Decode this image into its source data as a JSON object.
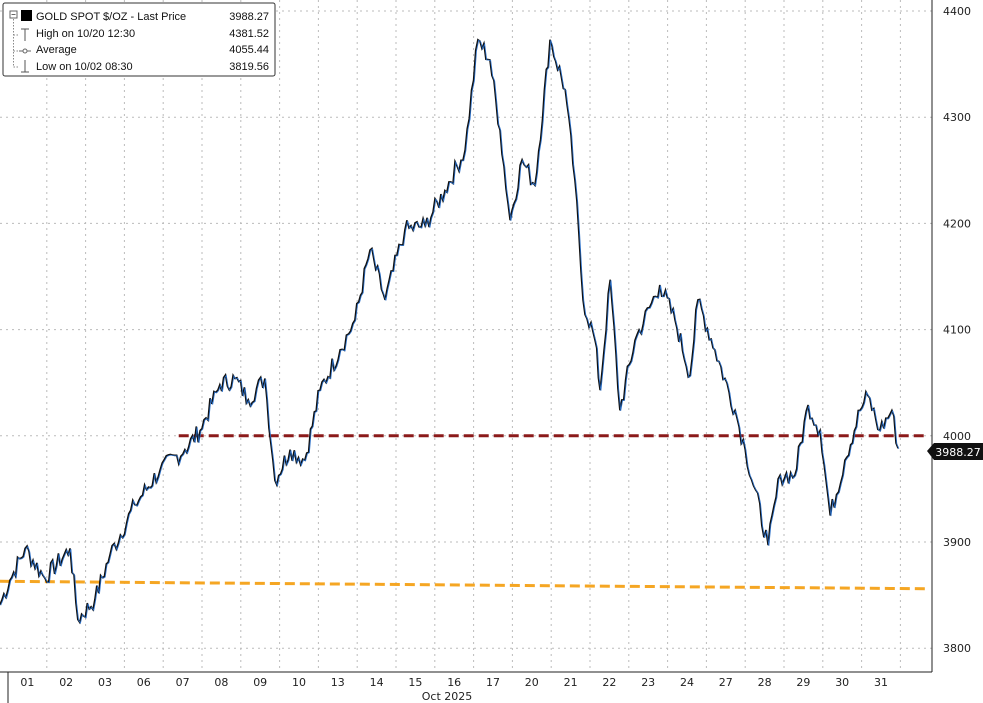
{
  "chart_data": {
    "type": "line",
    "title": "GOLD SPOT $/OZ - Last Price",
    "legend": {
      "placement": "top-left",
      "rows": [
        {
          "label": "GOLD SPOT $/OZ - Last Price",
          "value": "3988.27"
        },
        {
          "label": "High on 10/20 12:30",
          "value": "4381.52"
        },
        {
          "label": "Average",
          "value": "4055.44"
        },
        {
          "label": "Low on 10/02 08:30",
          "value": "3819.56"
        }
      ]
    },
    "xlabel": "Oct 2025",
    "x_ticks": [
      "01",
      "02",
      "03",
      "06",
      "07",
      "08",
      "09",
      "10",
      "13",
      "14",
      "15",
      "16",
      "17",
      "20",
      "21",
      "22",
      "23",
      "24",
      "27",
      "28",
      "29",
      "30",
      "31"
    ],
    "xlim": [
      -0.21,
      23.63
    ],
    "ylim": [
      3770,
      4410
    ],
    "y_ticks": [
      3800,
      3900,
      4000,
      4100,
      4200,
      4300,
      4400
    ],
    "grid": true,
    "last_price_label": "3988.27",
    "series": [
      {
        "name": "GOLD SPOT $/OZ",
        "color": "#1a1a1a",
        "x": [
          -0.21,
          0.05,
          0.44,
          0.95,
          1.6,
          1.8,
          2.24,
          2.63,
          3.27,
          3.92,
          4.56,
          4.95,
          5.46,
          5.85,
          6.19,
          6.62,
          6.88,
          7.27,
          7.65,
          8.04,
          8.56,
          8.94,
          9.33,
          9.72,
          10.23,
          10.75,
          11.26,
          11.78,
          12.11,
          12.42,
          12.68,
          12.94,
          13.25,
          13.58,
          13.97,
          14.36,
          14.61,
          14.82,
          15.13,
          15.26,
          15.52,
          15.77,
          16.16,
          16.8,
          17.19,
          17.58,
          17.78,
          18.22,
          18.74,
          19.0,
          19.59,
          19.9,
          20.28,
          20.62,
          20.93,
          21.19,
          21.57,
          21.96,
          22.16,
          22.47,
          22.78,
          22.94
        ],
        "y": [
          3841,
          3864,
          3894,
          3866,
          3894,
          3827,
          3846,
          3888,
          3935,
          3968,
          3987,
          4005,
          4048,
          4054,
          4034,
          4054,
          3958,
          3987,
          3977,
          4043,
          4081,
          4109,
          4175,
          4128,
          4194,
          4198,
          4231,
          4269,
          4373,
          4354,
          4288,
          4203,
          4260,
          4236,
          4373,
          4326,
          4241,
          4128,
          4090,
          4043,
          4147,
          4024,
          4090,
          4142,
          4109,
          4057,
          4128,
          4081,
          4024,
          3987,
          3897,
          3963,
          3963,
          4029,
          4005,
          3925,
          3977,
          4024,
          4038,
          4005,
          4024,
          3988.27
        ]
      }
    ],
    "reference_lines": [
      {
        "name": "level-4000",
        "color": "#8b1a1a",
        "from": [
          4.4,
          4000
        ],
        "to": [
          23.63,
          4000
        ]
      },
      {
        "name": "trend-line",
        "color": "#f5a623",
        "from": [
          -0.21,
          3863
        ],
        "to": [
          23.63,
          3856
        ]
      }
    ]
  }
}
